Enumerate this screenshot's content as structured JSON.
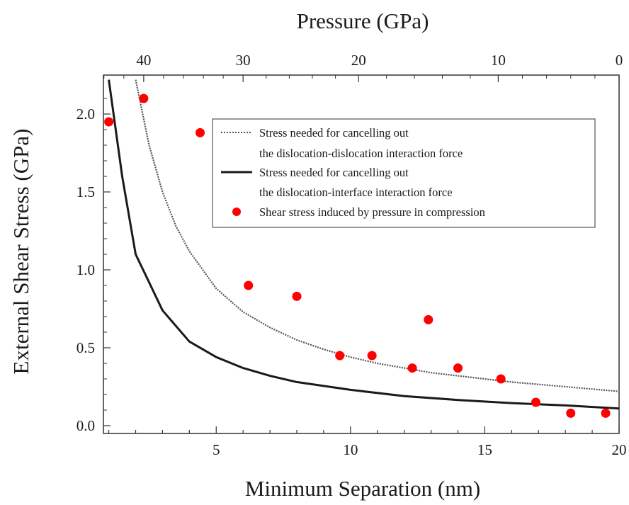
{
  "chart_data": {
    "type": "scatter",
    "xlabel": "Minimum Separation (nm)",
    "ylabel": "External Shear Stress (GPa)",
    "x2label": "Pressure (GPa)",
    "xlim": [
      0.8,
      20
    ],
    "ylim": [
      -0.05,
      2.25
    ],
    "x_ticks": [
      5,
      10,
      15,
      20
    ],
    "y_ticks": [
      0.0,
      0.5,
      1.0,
      1.5,
      2.0
    ],
    "y_tick_labels": [
      "0.0",
      "0.5",
      "1.0",
      "1.5",
      "2.0"
    ],
    "pressure_ticks": [
      40,
      30,
      20,
      10,
      0
    ],
    "pressure_tick_positions_nm": [
      2.3,
      6.0,
      10.3,
      15.5,
      20.0
    ],
    "legend_position": "upper-right",
    "grid": false,
    "series": [
      {
        "name": "Stress needed for cancelling out the dislocation-dislocation interaction force",
        "label_lines": [
          "Stress needed for cancelling out",
          "the dislocation-dislocation interaction force"
        ],
        "style": "dotted",
        "color": "#555555",
        "x": [
          2.0,
          2.5,
          3.0,
          3.5,
          4.0,
          5.0,
          6.0,
          7.0,
          8.0,
          9.0,
          10.0,
          11.0,
          12.0,
          13.0,
          14.0,
          15.0,
          16.0,
          17.0,
          18.0,
          19.0,
          20.0
        ],
        "y": [
          2.22,
          1.8,
          1.5,
          1.28,
          1.12,
          0.88,
          0.73,
          0.63,
          0.55,
          0.49,
          0.44,
          0.4,
          0.37,
          0.34,
          0.32,
          0.3,
          0.28,
          0.265,
          0.25,
          0.235,
          0.22
        ]
      },
      {
        "name": "Stress needed for cancelling out the dislocation-interface interaction force",
        "label_lines": [
          "Stress needed for cancelling out",
          "the dislocation-interface interaction force"
        ],
        "style": "solid",
        "color": "#1a1a1a",
        "x": [
          1.0,
          1.5,
          2.0,
          2.5,
          3.0,
          4.0,
          5.0,
          6.0,
          7.0,
          8.0,
          10.0,
          12.0,
          14.0,
          16.0,
          18.0,
          20.0
        ],
        "y": [
          2.22,
          1.6,
          1.1,
          0.92,
          0.74,
          0.54,
          0.44,
          0.37,
          0.32,
          0.28,
          0.23,
          0.19,
          0.165,
          0.145,
          0.13,
          0.11
        ]
      },
      {
        "name": "Shear stress induced by pressure in compression",
        "label_lines": [
          "Shear stress induced by pressure in compression"
        ],
        "style": "markers",
        "color": "#ff0000",
        "x": [
          1.0,
          2.3,
          4.4,
          6.2,
          8.0,
          9.6,
          10.8,
          12.3,
          12.9,
          14.0,
          15.6,
          16.9,
          18.2,
          19.5
        ],
        "y": [
          1.95,
          2.1,
          1.88,
          0.9,
          0.83,
          0.45,
          0.45,
          0.37,
          0.68,
          0.37,
          0.3,
          0.15,
          0.08,
          0.08
        ]
      }
    ]
  }
}
